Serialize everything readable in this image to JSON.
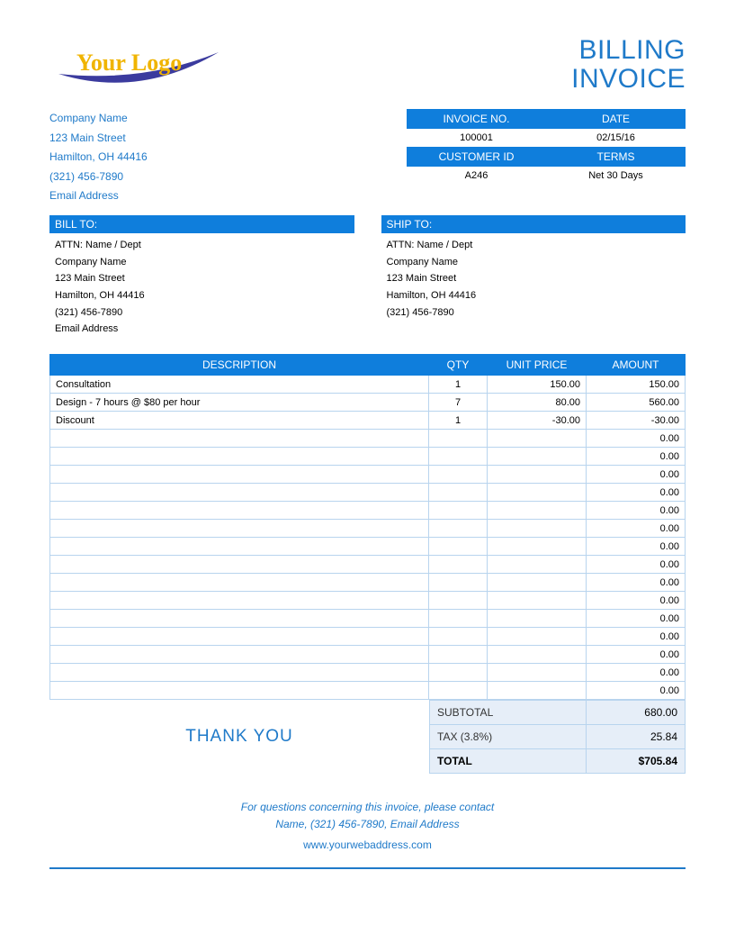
{
  "colors": {
    "accent": "#1f7ac9",
    "bar_bg": "#0f7edc",
    "cell_border": "#b8d4ee",
    "totals_bg": "#e6eef8",
    "logo_text": "#f0b400",
    "logo_swoosh": "#3b3b9e"
  },
  "title": {
    "line1": "BILLING",
    "line2": "INVOICE"
  },
  "logo": {
    "text": "Your Logo"
  },
  "company": {
    "name": "Company Name",
    "street": "123 Main Street",
    "citystate": "Hamilton, OH  44416",
    "phone": "(321) 456-7890",
    "email": "Email Address"
  },
  "meta": {
    "invoice_no_label": "INVOICE NO.",
    "date_label": "DATE",
    "invoice_no": "100001",
    "date": "02/15/16",
    "customer_id_label": "CUSTOMER ID",
    "terms_label": "TERMS",
    "customer_id": "A246",
    "terms": "Net 30 Days"
  },
  "bill_to": {
    "heading": "BILL TO:",
    "attn": "ATTN: Name / Dept",
    "company": "Company Name",
    "street": "123 Main Street",
    "citystate": "Hamilton, OH  44416",
    "phone": "(321) 456-7890",
    "email": "Email Address"
  },
  "ship_to": {
    "heading": "SHIP TO:",
    "attn": "ATTN: Name / Dept",
    "company": "Company Name",
    "street": "123 Main Street",
    "citystate": "Hamilton, OH  44416",
    "phone": "(321) 456-7890"
  },
  "table": {
    "headers": {
      "description": "DESCRIPTION",
      "qty": "QTY",
      "unit_price": "UNIT PRICE",
      "amount": "AMOUNT"
    },
    "rows": [
      {
        "description": "Consultation",
        "qty": "1",
        "unit_price": "150.00",
        "amount": "150.00"
      },
      {
        "description": "Design - 7 hours @ $80 per hour",
        "qty": "7",
        "unit_price": "80.00",
        "amount": "560.00"
      },
      {
        "description": "Discount",
        "qty": "1",
        "unit_price": "-30.00",
        "amount": "-30.00"
      },
      {
        "description": "",
        "qty": "",
        "unit_price": "",
        "amount": "0.00"
      },
      {
        "description": "",
        "qty": "",
        "unit_price": "",
        "amount": "0.00"
      },
      {
        "description": "",
        "qty": "",
        "unit_price": "",
        "amount": "0.00"
      },
      {
        "description": "",
        "qty": "",
        "unit_price": "",
        "amount": "0.00"
      },
      {
        "description": "",
        "qty": "",
        "unit_price": "",
        "amount": "0.00"
      },
      {
        "description": "",
        "qty": "",
        "unit_price": "",
        "amount": "0.00"
      },
      {
        "description": "",
        "qty": "",
        "unit_price": "",
        "amount": "0.00"
      },
      {
        "description": "",
        "qty": "",
        "unit_price": "",
        "amount": "0.00"
      },
      {
        "description": "",
        "qty": "",
        "unit_price": "",
        "amount": "0.00"
      },
      {
        "description": "",
        "qty": "",
        "unit_price": "",
        "amount": "0.00"
      },
      {
        "description": "",
        "qty": "",
        "unit_price": "",
        "amount": "0.00"
      },
      {
        "description": "",
        "qty": "",
        "unit_price": "",
        "amount": "0.00"
      },
      {
        "description": "",
        "qty": "",
        "unit_price": "",
        "amount": "0.00"
      },
      {
        "description": "",
        "qty": "",
        "unit_price": "",
        "amount": "0.00"
      },
      {
        "description": "",
        "qty": "",
        "unit_price": "",
        "amount": "0.00"
      }
    ]
  },
  "thanks": "THANK YOU",
  "totals": {
    "subtotal_label": "SUBTOTAL",
    "subtotal": "680.00",
    "tax_label": "TAX (3.8%)",
    "tax": "25.84",
    "total_label": "TOTAL",
    "total": "$705.84"
  },
  "footer": {
    "line1": "For questions concerning this invoice, please contact",
    "line2": "Name, (321) 456-7890, Email Address",
    "web": "www.yourwebaddress.com"
  }
}
